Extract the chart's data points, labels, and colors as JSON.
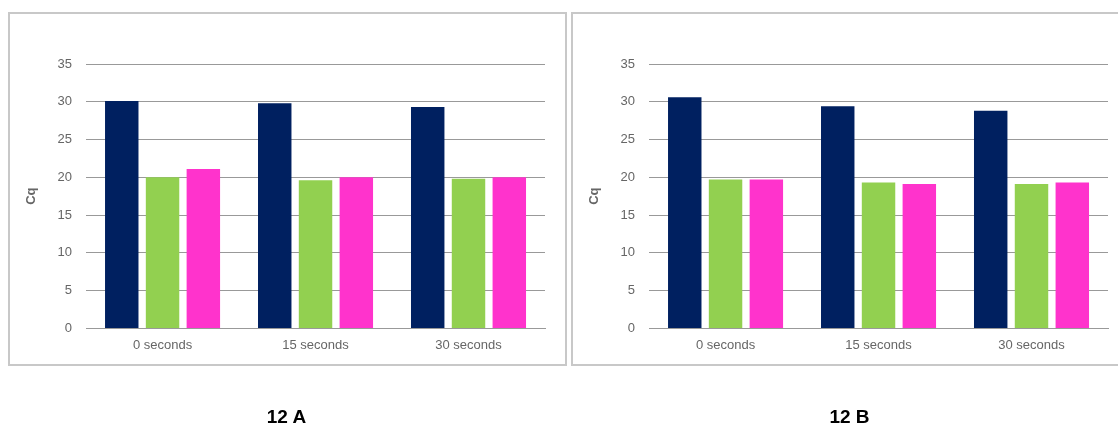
{
  "chart_data": [
    {
      "type": "bar",
      "title": "12 A",
      "ylabel": "Cq",
      "categories": [
        "0 seconds",
        "15 seconds",
        "30 seconds"
      ],
      "series": [
        {
          "color": "#002060",
          "values": [
            30.1,
            29.8,
            29.3
          ]
        },
        {
          "color": "#92d050",
          "values": [
            20,
            19.6,
            19.8
          ]
        },
        {
          "color": "#ff33cc",
          "values": [
            21.1,
            20,
            20
          ]
        }
      ],
      "ylim": [
        0,
        35
      ],
      "yticks": [
        0,
        5,
        10,
        15,
        20,
        25,
        30,
        35
      ],
      "grid": "y",
      "legend": false
    },
    {
      "type": "bar",
      "title": "12 B",
      "ylabel": "Cq",
      "categories": [
        "0 seconds",
        "15 seconds",
        "30 seconds"
      ],
      "series": [
        {
          "color": "#002060",
          "values": [
            30.6,
            29.4,
            28.8
          ]
        },
        {
          "color": "#92d050",
          "values": [
            19.7,
            19.3,
            19.1
          ]
        },
        {
          "color": "#ff33cc",
          "values": [
            19.7,
            19.1,
            19.3
          ]
        }
      ],
      "ylim": [
        0,
        35
      ],
      "yticks": [
        0,
        5,
        10,
        15,
        20,
        25,
        30,
        35
      ],
      "grid": "y",
      "legend": false
    }
  ]
}
